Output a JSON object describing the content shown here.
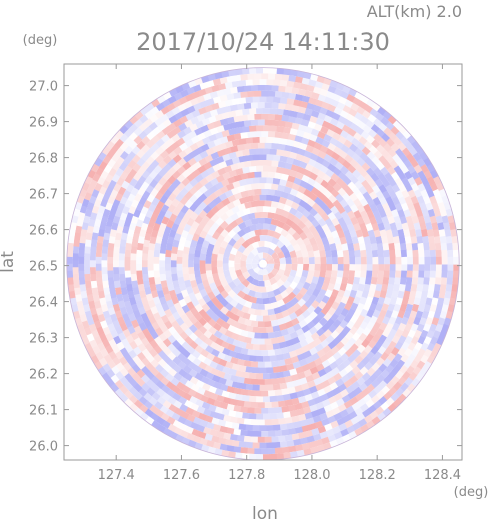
{
  "chart_data": {
    "type": "heatmap",
    "title": "2017/10/24 14:11:30",
    "subtitle": "ALT(km) 2.0",
    "xlabel": "lon",
    "ylabel": "lat",
    "xunit": "(deg)",
    "yunit": "(deg)",
    "xlim": [
      127.24,
      128.46
    ],
    "ylim": [
      25.96,
      27.06
    ],
    "xticks": [
      "127.4",
      "127.6",
      "127.8",
      "128.0",
      "128.2",
      "128.4"
    ],
    "yticks": [
      "26.0",
      "26.1",
      "26.2",
      "26.3",
      "26.4",
      "26.5",
      "26.6",
      "26.7",
      "26.8",
      "26.9",
      "27.0"
    ],
    "radar_center": {
      "lon": 127.85,
      "lat": 26.505
    },
    "coverage_radius_deg_lat": 0.545,
    "colors": {
      "positive": "#f08080",
      "negative": "#8080f0",
      "neutral": "#ffffff"
    }
  }
}
